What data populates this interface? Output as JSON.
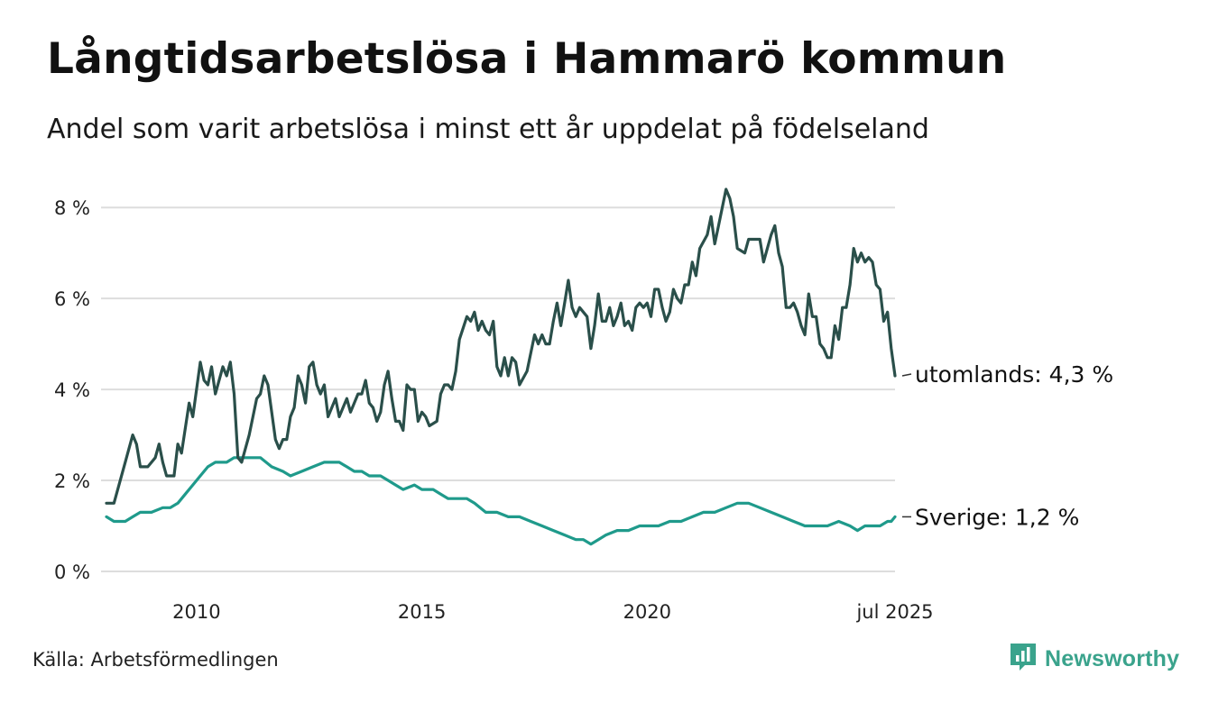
{
  "header": {
    "title": "Långtidsarbetslösa i Hammarö kommun",
    "subtitle": "Andel som varit arbetslösa i minst ett år uppdelat på födelseland"
  },
  "footer": {
    "source": "Källa: Arbetsförmedlingen",
    "brand": "Newsworthy",
    "brand_icon": "newsworthy-logo-icon"
  },
  "colors": {
    "utomlands": "#2a4f4a",
    "sverige": "#1f9a8b",
    "grid": "#dddddd",
    "brand": "#3aa38c"
  },
  "chart_data": {
    "type": "line",
    "title": "Långtidsarbetslösa i Hammarö kommun",
    "subtitle": "Andel som varit arbetslösa i minst ett år uppdelat på födelseland",
    "x_start": "2008-01",
    "x_end": "2025-07",
    "y_unit": "%",
    "ylim": [
      0,
      8.4
    ],
    "yticks": [
      {
        "value": 0,
        "label": "0 %"
      },
      {
        "value": 2,
        "label": "2 %"
      },
      {
        "value": 4,
        "label": "4 %"
      },
      {
        "value": 6,
        "label": "6 %"
      },
      {
        "value": 8,
        "label": "8 %"
      }
    ],
    "xticks": [
      {
        "value": "2010-01",
        "label": "2010"
      },
      {
        "value": "2015-01",
        "label": "2015"
      },
      {
        "value": "2020-01",
        "label": "2020"
      },
      {
        "value": "2025-07",
        "label": "jul 2025"
      }
    ],
    "grid": true,
    "series": [
      {
        "name": "utomlands",
        "end_label": "utomlands: 4,3 %",
        "end_value": 4.3,
        "points": [
          [
            "2008-01",
            1.5
          ],
          [
            "2008-03",
            1.5
          ],
          [
            "2008-06",
            2.4
          ],
          [
            "2008-08",
            3.0
          ],
          [
            "2008-09",
            2.8
          ],
          [
            "2008-10",
            2.3
          ],
          [
            "2008-12",
            2.3
          ],
          [
            "2009-02",
            2.5
          ],
          [
            "2009-03",
            2.8
          ],
          [
            "2009-04",
            2.4
          ],
          [
            "2009-05",
            2.1
          ],
          [
            "2009-07",
            2.1
          ],
          [
            "2009-08",
            2.8
          ],
          [
            "2009-09",
            2.6
          ],
          [
            "2009-11",
            3.7
          ],
          [
            "2009-12",
            3.4
          ],
          [
            "2010-02",
            4.6
          ],
          [
            "2010-03",
            4.2
          ],
          [
            "2010-04",
            4.1
          ],
          [
            "2010-05",
            4.5
          ],
          [
            "2010-06",
            3.9
          ],
          [
            "2010-08",
            4.5
          ],
          [
            "2010-09",
            4.3
          ],
          [
            "2010-10",
            4.6
          ],
          [
            "2010-11",
            3.9
          ],
          [
            "2010-12",
            2.5
          ],
          [
            "2011-01",
            2.4
          ],
          [
            "2011-03",
            3.0
          ],
          [
            "2011-05",
            3.8
          ],
          [
            "2011-06",
            3.9
          ],
          [
            "2011-07",
            4.3
          ],
          [
            "2011-08",
            4.1
          ],
          [
            "2011-10",
            2.9
          ],
          [
            "2011-11",
            2.7
          ],
          [
            "2011-12",
            2.9
          ],
          [
            "2012-01",
            2.9
          ],
          [
            "2012-02",
            3.4
          ],
          [
            "2012-03",
            3.6
          ],
          [
            "2012-04",
            4.3
          ],
          [
            "2012-05",
            4.1
          ],
          [
            "2012-06",
            3.7
          ],
          [
            "2012-07",
            4.5
          ],
          [
            "2012-08",
            4.6
          ],
          [
            "2012-09",
            4.1
          ],
          [
            "2012-10",
            3.9
          ],
          [
            "2012-11",
            4.1
          ],
          [
            "2012-12",
            3.4
          ],
          [
            "2013-02",
            3.8
          ],
          [
            "2013-03",
            3.4
          ],
          [
            "2013-05",
            3.8
          ],
          [
            "2013-06",
            3.5
          ],
          [
            "2013-08",
            3.9
          ],
          [
            "2013-09",
            3.9
          ],
          [
            "2013-10",
            4.2
          ],
          [
            "2013-11",
            3.7
          ],
          [
            "2013-12",
            3.6
          ],
          [
            "2014-01",
            3.3
          ],
          [
            "2014-02",
            3.5
          ],
          [
            "2014-03",
            4.1
          ],
          [
            "2014-04",
            4.4
          ],
          [
            "2014-05",
            3.8
          ],
          [
            "2014-06",
            3.3
          ],
          [
            "2014-07",
            3.3
          ],
          [
            "2014-08",
            3.1
          ],
          [
            "2014-09",
            4.1
          ],
          [
            "2014-10",
            4.0
          ],
          [
            "2014-11",
            4.0
          ],
          [
            "2014-12",
            3.3
          ],
          [
            "2015-01",
            3.5
          ],
          [
            "2015-02",
            3.4
          ],
          [
            "2015-03",
            3.2
          ],
          [
            "2015-05",
            3.3
          ],
          [
            "2015-06",
            3.9
          ],
          [
            "2015-07",
            4.1
          ],
          [
            "2015-08",
            4.1
          ],
          [
            "2015-09",
            4.0
          ],
          [
            "2015-10",
            4.4
          ],
          [
            "2015-11",
            5.1
          ],
          [
            "2016-01",
            5.6
          ],
          [
            "2016-02",
            5.5
          ],
          [
            "2016-03",
            5.7
          ],
          [
            "2016-04",
            5.3
          ],
          [
            "2016-05",
            5.5
          ],
          [
            "2016-06",
            5.3
          ],
          [
            "2016-07",
            5.2
          ],
          [
            "2016-08",
            5.5
          ],
          [
            "2016-09",
            4.5
          ],
          [
            "2016-10",
            4.3
          ],
          [
            "2016-11",
            4.7
          ],
          [
            "2016-12",
            4.3
          ],
          [
            "2017-01",
            4.7
          ],
          [
            "2017-02",
            4.6
          ],
          [
            "2017-03",
            4.1
          ],
          [
            "2017-05",
            4.4
          ],
          [
            "2017-07",
            5.2
          ],
          [
            "2017-08",
            5.0
          ],
          [
            "2017-09",
            5.2
          ],
          [
            "2017-10",
            5.0
          ],
          [
            "2017-11",
            5.0
          ],
          [
            "2017-12",
            5.5
          ],
          [
            "2018-01",
            5.9
          ],
          [
            "2018-02",
            5.4
          ],
          [
            "2018-03",
            5.9
          ],
          [
            "2018-04",
            6.4
          ],
          [
            "2018-05",
            5.8
          ],
          [
            "2018-06",
            5.6
          ],
          [
            "2018-07",
            5.8
          ],
          [
            "2018-09",
            5.6
          ],
          [
            "2018-10",
            4.9
          ],
          [
            "2018-11",
            5.4
          ],
          [
            "2018-12",
            6.1
          ],
          [
            "2019-01",
            5.5
          ],
          [
            "2019-02",
            5.5
          ],
          [
            "2019-03",
            5.8
          ],
          [
            "2019-04",
            5.4
          ],
          [
            "2019-05",
            5.6
          ],
          [
            "2019-06",
            5.9
          ],
          [
            "2019-07",
            5.4
          ],
          [
            "2019-08",
            5.5
          ],
          [
            "2019-09",
            5.3
          ],
          [
            "2019-10",
            5.8
          ],
          [
            "2019-11",
            5.9
          ],
          [
            "2019-12",
            5.8
          ],
          [
            "2020-01",
            5.9
          ],
          [
            "2020-02",
            5.6
          ],
          [
            "2020-03",
            6.2
          ],
          [
            "2020-04",
            6.2
          ],
          [
            "2020-05",
            5.8
          ],
          [
            "2020-06",
            5.5
          ],
          [
            "2020-07",
            5.7
          ],
          [
            "2020-08",
            6.2
          ],
          [
            "2020-09",
            6.0
          ],
          [
            "2020-10",
            5.9
          ],
          [
            "2020-11",
            6.3
          ],
          [
            "2020-12",
            6.3
          ],
          [
            "2021-01",
            6.8
          ],
          [
            "2021-02",
            6.5
          ],
          [
            "2021-03",
            7.1
          ],
          [
            "2021-05",
            7.4
          ],
          [
            "2021-06",
            7.8
          ],
          [
            "2021-07",
            7.2
          ],
          [
            "2021-08",
            7.6
          ],
          [
            "2021-10",
            8.4
          ],
          [
            "2021-11",
            8.2
          ],
          [
            "2021-12",
            7.8
          ],
          [
            "2022-01",
            7.1
          ],
          [
            "2022-03",
            7.0
          ],
          [
            "2022-04",
            7.3
          ],
          [
            "2022-05",
            7.3
          ],
          [
            "2022-07",
            7.3
          ],
          [
            "2022-08",
            6.8
          ],
          [
            "2022-09",
            7.1
          ],
          [
            "2022-10",
            7.4
          ],
          [
            "2022-11",
            7.6
          ],
          [
            "2022-12",
            7.0
          ],
          [
            "2023-01",
            6.7
          ],
          [
            "2023-02",
            5.8
          ],
          [
            "2023-03",
            5.8
          ],
          [
            "2023-04",
            5.9
          ],
          [
            "2023-05",
            5.7
          ],
          [
            "2023-06",
            5.4
          ],
          [
            "2023-07",
            5.2
          ],
          [
            "2023-08",
            6.1
          ],
          [
            "2023-09",
            5.6
          ],
          [
            "2023-10",
            5.6
          ],
          [
            "2023-11",
            5.0
          ],
          [
            "2023-12",
            4.9
          ],
          [
            "2024-01",
            4.7
          ],
          [
            "2024-02",
            4.7
          ],
          [
            "2024-03",
            5.4
          ],
          [
            "2024-04",
            5.1
          ],
          [
            "2024-05",
            5.8
          ],
          [
            "2024-06",
            5.8
          ],
          [
            "2024-07",
            6.3
          ],
          [
            "2024-08",
            7.1
          ],
          [
            "2024-09",
            6.8
          ],
          [
            "2024-10",
            7.0
          ],
          [
            "2024-11",
            6.8
          ],
          [
            "2024-12",
            6.9
          ],
          [
            "2025-01",
            6.8
          ],
          [
            "2025-02",
            6.3
          ],
          [
            "2025-03",
            6.2
          ],
          [
            "2025-04",
            5.5
          ],
          [
            "2025-05",
            5.7
          ],
          [
            "2025-06",
            4.9
          ],
          [
            "2025-07",
            4.3
          ]
        ]
      },
      {
        "name": "Sverige",
        "end_label": "Sverige: 1,2 %",
        "end_value": 1.2,
        "points": [
          [
            "2008-01",
            1.2
          ],
          [
            "2008-03",
            1.1
          ],
          [
            "2008-06",
            1.1
          ],
          [
            "2008-08",
            1.2
          ],
          [
            "2008-10",
            1.3
          ],
          [
            "2009-01",
            1.3
          ],
          [
            "2009-04",
            1.4
          ],
          [
            "2009-06",
            1.4
          ],
          [
            "2009-08",
            1.5
          ],
          [
            "2009-10",
            1.7
          ],
          [
            "2009-12",
            1.9
          ],
          [
            "2010-02",
            2.1
          ],
          [
            "2010-04",
            2.3
          ],
          [
            "2010-06",
            2.4
          ],
          [
            "2010-09",
            2.4
          ],
          [
            "2010-11",
            2.5
          ],
          [
            "2011-01",
            2.5
          ],
          [
            "2011-04",
            2.5
          ],
          [
            "2011-06",
            2.5
          ],
          [
            "2011-09",
            2.3
          ],
          [
            "2011-12",
            2.2
          ],
          [
            "2012-02",
            2.1
          ],
          [
            "2012-05",
            2.2
          ],
          [
            "2012-08",
            2.3
          ],
          [
            "2012-11",
            2.4
          ],
          [
            "2013-01",
            2.4
          ],
          [
            "2013-03",
            2.4
          ],
          [
            "2013-05",
            2.3
          ],
          [
            "2013-07",
            2.2
          ],
          [
            "2013-09",
            2.2
          ],
          [
            "2013-11",
            2.1
          ],
          [
            "2014-02",
            2.1
          ],
          [
            "2014-04",
            2.0
          ],
          [
            "2014-06",
            1.9
          ],
          [
            "2014-08",
            1.8
          ],
          [
            "2014-11",
            1.9
          ],
          [
            "2015-01",
            1.8
          ],
          [
            "2015-04",
            1.8
          ],
          [
            "2015-06",
            1.7
          ],
          [
            "2015-08",
            1.6
          ],
          [
            "2015-10",
            1.6
          ],
          [
            "2016-01",
            1.6
          ],
          [
            "2016-03",
            1.5
          ],
          [
            "2016-06",
            1.3
          ],
          [
            "2016-09",
            1.3
          ],
          [
            "2016-12",
            1.2
          ],
          [
            "2017-03",
            1.2
          ],
          [
            "2017-06",
            1.1
          ],
          [
            "2017-09",
            1.0
          ],
          [
            "2017-12",
            0.9
          ],
          [
            "2018-03",
            0.8
          ],
          [
            "2018-06",
            0.7
          ],
          [
            "2018-08",
            0.7
          ],
          [
            "2018-10",
            0.6
          ],
          [
            "2018-12",
            0.7
          ],
          [
            "2019-02",
            0.8
          ],
          [
            "2019-05",
            0.9
          ],
          [
            "2019-08",
            0.9
          ],
          [
            "2019-11",
            1.0
          ],
          [
            "2020-01",
            1.0
          ],
          [
            "2020-04",
            1.0
          ],
          [
            "2020-07",
            1.1
          ],
          [
            "2020-10",
            1.1
          ],
          [
            "2021-01",
            1.2
          ],
          [
            "2021-04",
            1.3
          ],
          [
            "2021-07",
            1.3
          ],
          [
            "2021-10",
            1.4
          ],
          [
            "2022-01",
            1.5
          ],
          [
            "2022-04",
            1.5
          ],
          [
            "2022-07",
            1.4
          ],
          [
            "2022-10",
            1.3
          ],
          [
            "2023-01",
            1.2
          ],
          [
            "2023-04",
            1.1
          ],
          [
            "2023-07",
            1.0
          ],
          [
            "2023-10",
            1.0
          ],
          [
            "2024-01",
            1.0
          ],
          [
            "2024-04",
            1.1
          ],
          [
            "2024-07",
            1.0
          ],
          [
            "2024-09",
            0.9
          ],
          [
            "2024-11",
            1.0
          ],
          [
            "2025-01",
            1.0
          ],
          [
            "2025-03",
            1.0
          ],
          [
            "2025-05",
            1.1
          ],
          [
            "2025-06",
            1.1
          ],
          [
            "2025-07",
            1.2
          ]
        ]
      }
    ]
  }
}
